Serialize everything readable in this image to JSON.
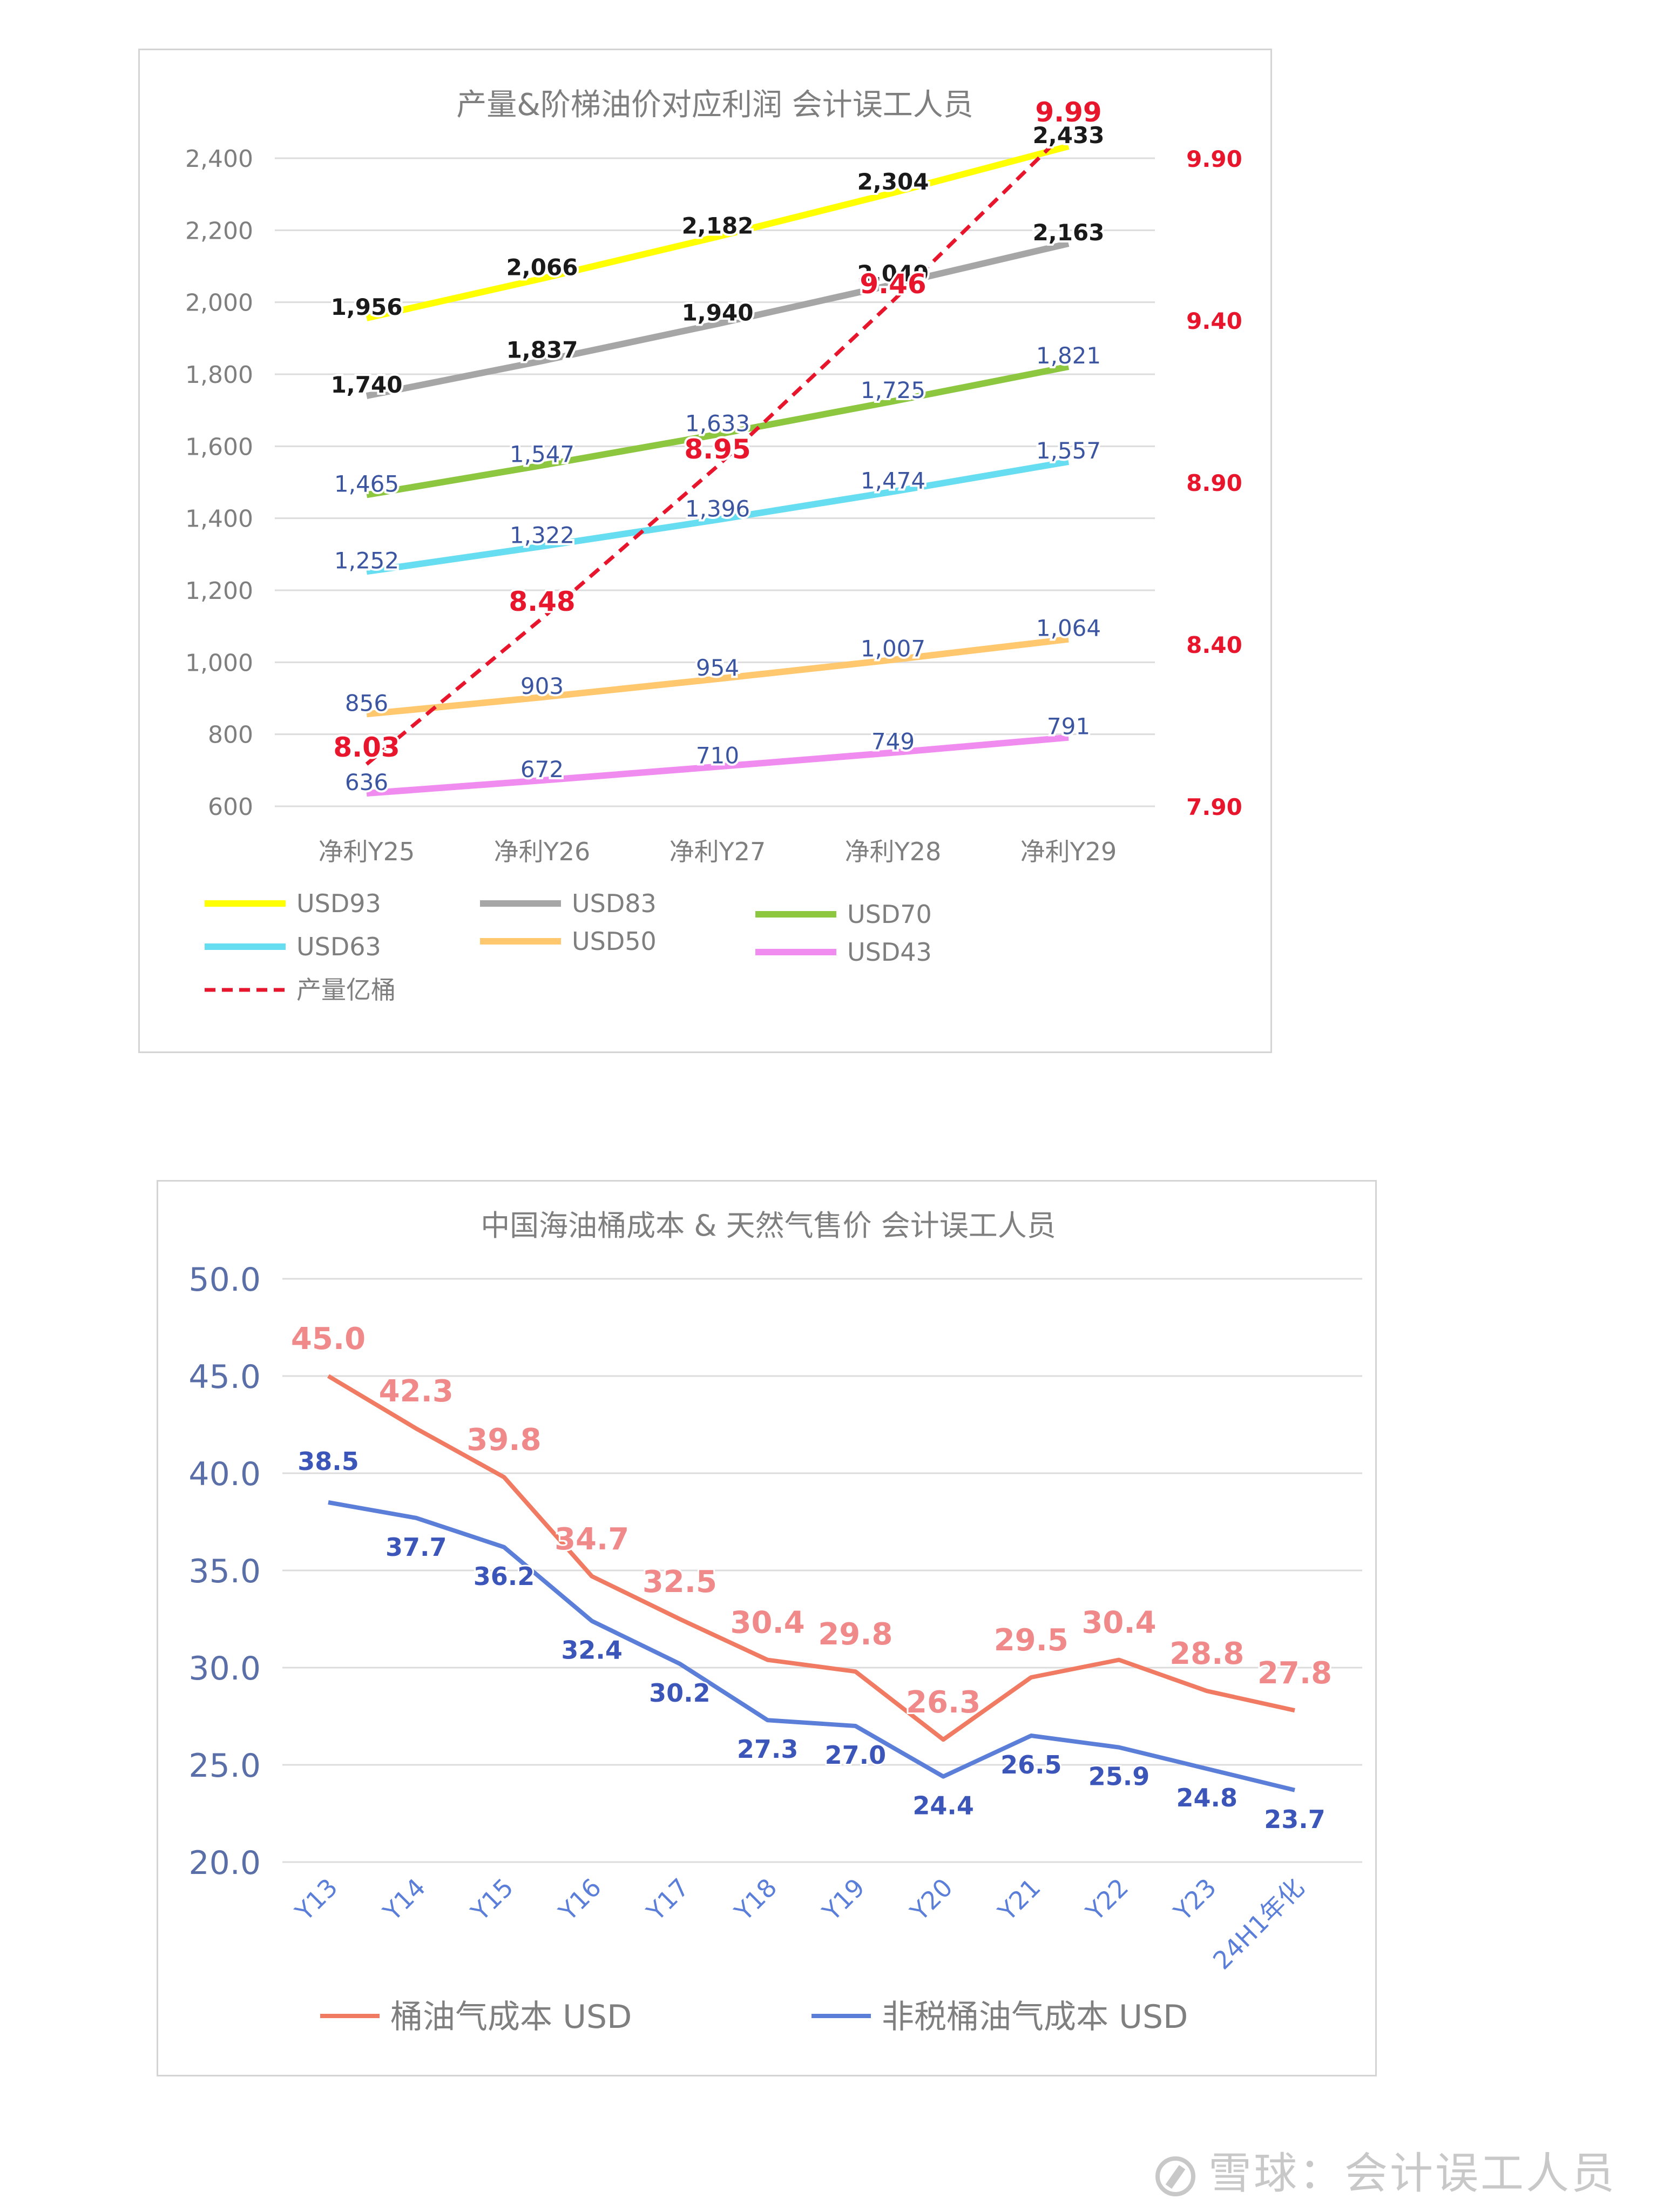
{
  "watermark": "雪球：会计误工人员",
  "chart_data": [
    {
      "type": "line",
      "title": "产量&阶梯油价对应利润 会计误工人员",
      "categories": [
        "净利Y25",
        "净利Y26",
        "净利Y27",
        "净利Y28",
        "净利Y29"
      ],
      "y_left": {
        "range": [
          600,
          2400
        ],
        "ticks": [
          "600",
          "800",
          "1,000",
          "1,200",
          "1,400",
          "1,600",
          "1,800",
          "2,000",
          "2,200",
          "2,400"
        ]
      },
      "y_right": {
        "range": [
          7.9,
          9.9
        ],
        "ticks": [
          "7.90",
          "8.40",
          "8.90",
          "9.40",
          "9.90"
        ]
      },
      "series": [
        {
          "name": "USD93",
          "color": "#ffff00",
          "values": [
            1956,
            2066,
            2182,
            2304,
            2433
          ],
          "labels": [
            "1,956",
            "2,066",
            "2,182",
            "2,304",
            "2,433"
          ],
          "axis": "left"
        },
        {
          "name": "USD83",
          "color": "#a6a6a6",
          "values": [
            1740,
            1837,
            1940,
            2049,
            2163
          ],
          "labels": [
            "1,740",
            "1,837",
            "1,940",
            "2,049",
            "2,163"
          ],
          "axis": "left"
        },
        {
          "name": "USD70",
          "color": "#8dc63f",
          "values": [
            1465,
            1547,
            1633,
            1725,
            1821
          ],
          "labels": [
            "1,465",
            "1,547",
            "1,633",
            "1,725",
            "1,821"
          ],
          "axis": "left"
        },
        {
          "name": "USD63",
          "color": "#66ddf0",
          "values": [
            1252,
            1322,
            1396,
            1474,
            1557
          ],
          "labels": [
            "1,252",
            "1,322",
            "1,396",
            "1,474",
            "1,557"
          ],
          "axis": "left"
        },
        {
          "name": "USD50",
          "color": "#ffc86e",
          "values": [
            856,
            903,
            954,
            1007,
            1064
          ],
          "labels": [
            "856",
            "903",
            "954",
            "1,007",
            "1,064"
          ],
          "axis": "left"
        },
        {
          "name": "USD43",
          "color": "#f08cf0",
          "values": [
            636,
            672,
            710,
            749,
            791
          ],
          "labels": [
            "636",
            "672",
            "710",
            "749",
            "791"
          ],
          "axis": "left"
        },
        {
          "name": "产量亿桶",
          "color": "#e8162d",
          "values": [
            8.03,
            8.48,
            8.95,
            9.46,
            9.99
          ],
          "labels": [
            "8.03",
            "8.48",
            "8.95",
            "9.46",
            "9.99"
          ],
          "axis": "right",
          "dashed": true
        }
      ],
      "legend": [
        "USD93",
        "USD83",
        "USD70",
        "USD63",
        "USD50",
        "USD43",
        "产量亿桶"
      ],
      "legend_position": "bottom",
      "grid": true
    },
    {
      "type": "line",
      "title": "中国海油桶成本 & 天然气售价 会计误工人员",
      "categories": [
        "Y13",
        "Y14",
        "Y15",
        "Y16",
        "Y17",
        "Y18",
        "Y19",
        "Y20",
        "Y21",
        "Y22",
        "Y23",
        "24H1年化"
      ],
      "ylim": [
        20,
        50
      ],
      "y_ticks": [
        "20.0",
        "25.0",
        "30.0",
        "35.0",
        "40.0",
        "45.0",
        "50.0"
      ],
      "series": [
        {
          "name": "桶油气成本 USD",
          "color": "#f07b62",
          "label_color": "#f08a8a",
          "values": [
            45.0,
            42.3,
            39.8,
            34.7,
            32.5,
            30.4,
            29.8,
            26.3,
            29.5,
            30.4,
            28.8,
            27.8
          ],
          "labels": [
            "45.0",
            "42.3",
            "39.8",
            "34.7",
            "32.5",
            "30.4",
            "29.8",
            "26.3",
            "29.5",
            "30.4",
            "28.8",
            "27.8"
          ]
        },
        {
          "name": "非税桶油气成本 USD",
          "color": "#5b7fd8",
          "label_color": "#3b55b8",
          "values": [
            38.5,
            37.7,
            36.2,
            32.4,
            30.2,
            27.3,
            27.0,
            24.4,
            26.5,
            25.9,
            24.8,
            23.7
          ],
          "labels": [
            "38.5",
            "37.7",
            "36.2",
            "32.4",
            "30.2",
            "27.3",
            "27.0",
            "24.4",
            "26.5",
            "25.9",
            "24.8",
            "23.7"
          ]
        }
      ],
      "legend_position": "bottom",
      "grid": true
    }
  ]
}
